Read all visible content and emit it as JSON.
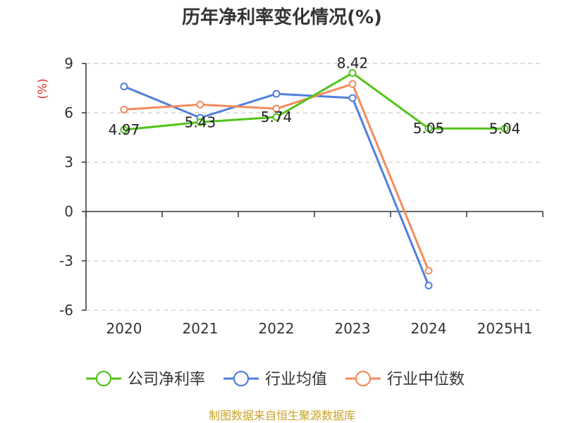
{
  "chart_data": {
    "type": "line",
    "title": "历年净利率变化情况(%)",
    "ylabel": "(%)",
    "categories": [
      "2020",
      "2021",
      "2022",
      "2023",
      "2024",
      "2025H1"
    ],
    "yticks": [
      "9",
      "6",
      "3",
      "0",
      "-3",
      "-6"
    ],
    "ylim": [
      -6,
      9
    ],
    "grid": true,
    "legend_position": "bottom",
    "series": [
      {
        "name": "公司净利率",
        "color": "#52c41a",
        "values": [
          4.97,
          5.43,
          5.74,
          8.42,
          5.05,
          5.04
        ],
        "labels": [
          "4.97",
          "5.43",
          "5.74",
          "8.42",
          "5.05",
          "5.04"
        ]
      },
      {
        "name": "行业均值",
        "color": "#4f7fdc",
        "values": [
          7.6,
          5.7,
          7.15,
          6.9,
          -4.5,
          null
        ]
      },
      {
        "name": "行业中位数",
        "color": "#f28c5c",
        "values": [
          6.2,
          6.5,
          6.25,
          7.75,
          -3.6,
          null
        ]
      }
    ]
  },
  "source": "制图数据来自恒生聚源数据库",
  "colors": {
    "ylabel": "#e0322d",
    "source": "#c9a227",
    "grid": "#cccccc",
    "axis": "#333333"
  }
}
